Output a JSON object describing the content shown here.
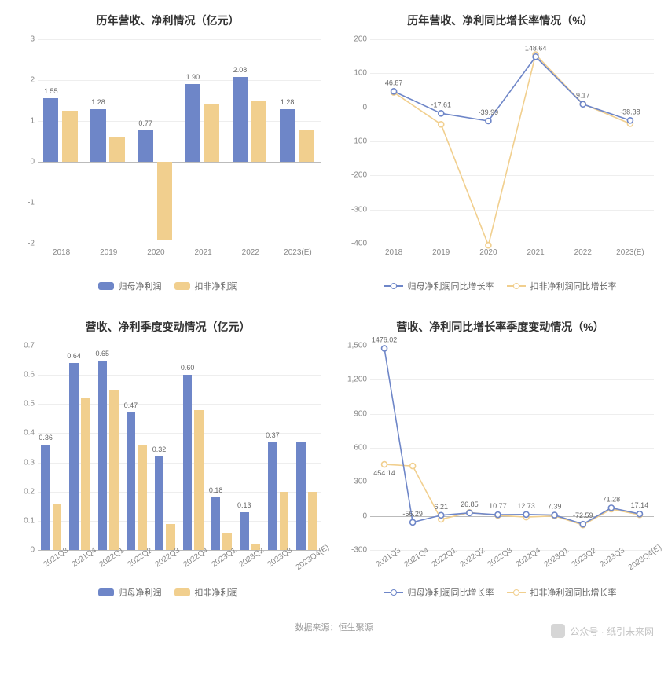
{
  "colors": {
    "series_blue": "#6e86c8",
    "series_gold": "#f1cf8e",
    "line_blue": "#6e86c8",
    "line_gold": "#f1cf8e",
    "grid": "#eeeeee",
    "axis_text": "#888888",
    "title_text": "#333333",
    "label_text": "#666666"
  },
  "panelA": {
    "title": "历年营收、净利情况（亿元）",
    "type": "bar",
    "categories": [
      "2018",
      "2019",
      "2020",
      "2021",
      "2022",
      "2023(E)"
    ],
    "ylim": [
      -2,
      3
    ],
    "yticks": [
      -2,
      -1,
      0,
      1,
      2,
      3
    ],
    "bar_width": 0.32,
    "series": [
      {
        "name": "归母净利润",
        "color": "#6e86c8",
        "values": [
          1.55,
          1.28,
          0.77,
          1.9,
          2.08,
          1.28
        ],
        "labels": [
          "1.55",
          "1.28",
          "0.77",
          "1.90",
          "2.08",
          "1.28"
        ]
      },
      {
        "name": "扣非净利润",
        "color": "#f1cf8e",
        "values": [
          1.25,
          0.62,
          -1.9,
          1.4,
          1.5,
          0.78
        ],
        "labels": [
          "",
          "",
          "",
          "",
          "",
          ""
        ]
      }
    ]
  },
  "panelB": {
    "title": "历年营收、净利同比增长率情况（%）",
    "type": "line",
    "categories": [
      "2018",
      "2019",
      "2020",
      "2021",
      "2022",
      "2023(E)"
    ],
    "ylim": [
      -400,
      200
    ],
    "yticks": [
      -400,
      -300,
      -200,
      -100,
      0,
      100,
      200
    ],
    "series": [
      {
        "name": "归母净利润同比增长率",
        "color": "#6e86c8",
        "values": [
          46.87,
          -17.61,
          -39.99,
          148.64,
          9.17,
          -38.38
        ],
        "labels": [
          "46.87",
          "-17.61",
          "-39.99",
          "148.64",
          "9.17",
          "-38.38"
        ]
      },
      {
        "name": "扣非净利润同比增长率",
        "color": "#f1cf8e",
        "values": [
          44,
          -50,
          -405,
          155,
          10,
          -48
        ],
        "labels": [
          "",
          "",
          "",
          "",
          "",
          ""
        ]
      }
    ]
  },
  "panelC": {
    "title": "营收、净利季度变动情况（亿元）",
    "type": "bar",
    "categories": [
      "2021Q3",
      "2021Q4",
      "2022Q1",
      "2022Q2",
      "2022Q3",
      "2022Q4",
      "2023Q1",
      "2023Q2",
      "2023Q3",
      "2023Q4(E)"
    ],
    "rotate_xlabels": true,
    "ylim": [
      0,
      0.7
    ],
    "yticks": [
      0,
      0.1,
      0.2,
      0.3,
      0.4,
      0.5,
      0.6,
      0.7
    ],
    "bar_width": 0.34,
    "series": [
      {
        "name": "归母净利润",
        "color": "#6e86c8",
        "values": [
          0.36,
          0.64,
          0.65,
          0.47,
          0.32,
          0.6,
          0.18,
          0.13,
          0.37,
          0.37
        ],
        "labels": [
          "0.36",
          "0.64",
          "0.65",
          "0.47",
          "0.32",
          "0.60",
          "0.18",
          "0.13",
          "0.37",
          ""
        ]
      },
      {
        "name": "扣非净利润",
        "color": "#f1cf8e",
        "values": [
          0.16,
          0.52,
          0.55,
          0.36,
          0.09,
          0.48,
          0.06,
          0.02,
          0.2,
          0.2
        ],
        "labels": [
          "",
          "",
          "",
          "",
          "",
          "",
          "",
          "",
          "",
          ""
        ]
      }
    ]
  },
  "panelD": {
    "title": "营收、净利同比增长率季度变动情况（%）",
    "type": "line",
    "categories": [
      "2021Q3",
      "2021Q4",
      "2022Q1",
      "2022Q2",
      "2022Q3",
      "2022Q4",
      "2023Q1",
      "2023Q2",
      "2023Q3",
      "2023Q4(E)"
    ],
    "rotate_xlabels": true,
    "ylim": [
      -300,
      1500
    ],
    "yticks": [
      -300,
      0,
      300,
      600,
      900,
      1200,
      1500
    ],
    "series": [
      {
        "name": "归母净利润同比增长率",
        "color": "#6e86c8",
        "values": [
          1476.02,
          -56.29,
          6.21,
          26.85,
          10.77,
          12.73,
          7.39,
          -72.59,
          71.28,
          17.14
        ],
        "labels": [
          "1476.02",
          "-56.29",
          "6.21",
          "26.85",
          "10.77",
          "12.73",
          "7.39",
          "-72.59",
          "71.28",
          "17.14"
        ]
      },
      {
        "name": "扣非净利润同比增长率",
        "color": "#f1cf8e",
        "values": [
          454.14,
          440,
          -30,
          30,
          5,
          -10,
          0,
          -80,
          60,
          10
        ],
        "labels": [
          "454.14",
          "",
          "",
          "",
          "",
          "",
          "",
          "",
          "",
          ""
        ]
      }
    ]
  },
  "legend_bar": [
    {
      "label": "归母净利润",
      "color": "#6e86c8"
    },
    {
      "label": "扣非净利润",
      "color": "#f1cf8e"
    }
  ],
  "legend_line": [
    {
      "label": "归母净利润同比增长率",
      "color": "#6e86c8"
    },
    {
      "label": "扣非净利润同比增长率",
      "color": "#f1cf8e"
    }
  ],
  "footer": "数据来源：恒生聚源",
  "watermark": "公众号 · 纸引未来网"
}
